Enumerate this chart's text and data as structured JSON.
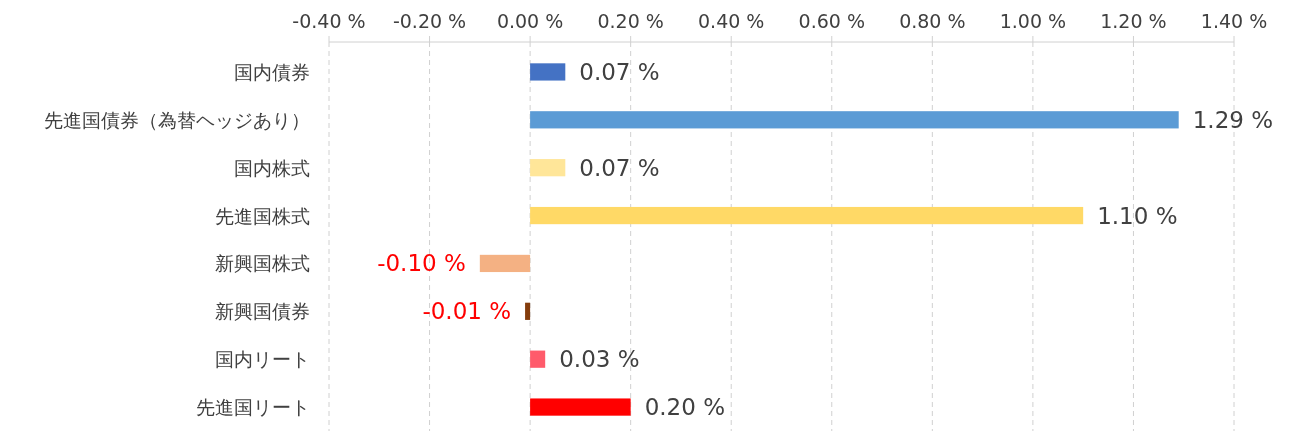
{
  "chart_data": {
    "type": "bar",
    "orientation": "horizontal",
    "categories": [
      "国内債券",
      "先進国債券（為替ヘッジあり）",
      "国内株式",
      "先進国株式",
      "新興国株式",
      "新興国債券",
      "国内リート",
      "先進国リート"
    ],
    "values": [
      0.07,
      1.29,
      0.07,
      1.1,
      -0.1,
      -0.01,
      0.03,
      0.2
    ],
    "colors": [
      "#4472c4",
      "#5b9bd5",
      "#ffe699",
      "#ffd966",
      "#f4b183",
      "#843c0c",
      "#ff5b6b",
      "#ff0000"
    ],
    "value_labels": [
      "0.07 %",
      "1.29 %",
      "0.07 %",
      "1.10 %",
      "-0.10 %",
      "-0.01 %",
      "0.03 %",
      "0.20 %"
    ],
    "xlim": [
      -0.4,
      1.4
    ],
    "xticks": [
      {
        "value": -0.4,
        "label": "-0.40 %"
      },
      {
        "value": -0.2,
        "label": "-0.20 %"
      },
      {
        "value": 0,
        "label": "0.00 %"
      },
      {
        "value": 0.2,
        "label": "0.20 %"
      },
      {
        "value": 0.4,
        "label": "0.40 %"
      },
      {
        "value": 0.6,
        "label": "0.60 %"
      },
      {
        "value": 0.8,
        "label": "0.80 %"
      },
      {
        "value": 1.0,
        "label": "1.00 %"
      },
      {
        "value": 1.2,
        "label": "1.20 %"
      },
      {
        "value": 1.4,
        "label": "1.40 %"
      }
    ],
    "grid": "x"
  }
}
